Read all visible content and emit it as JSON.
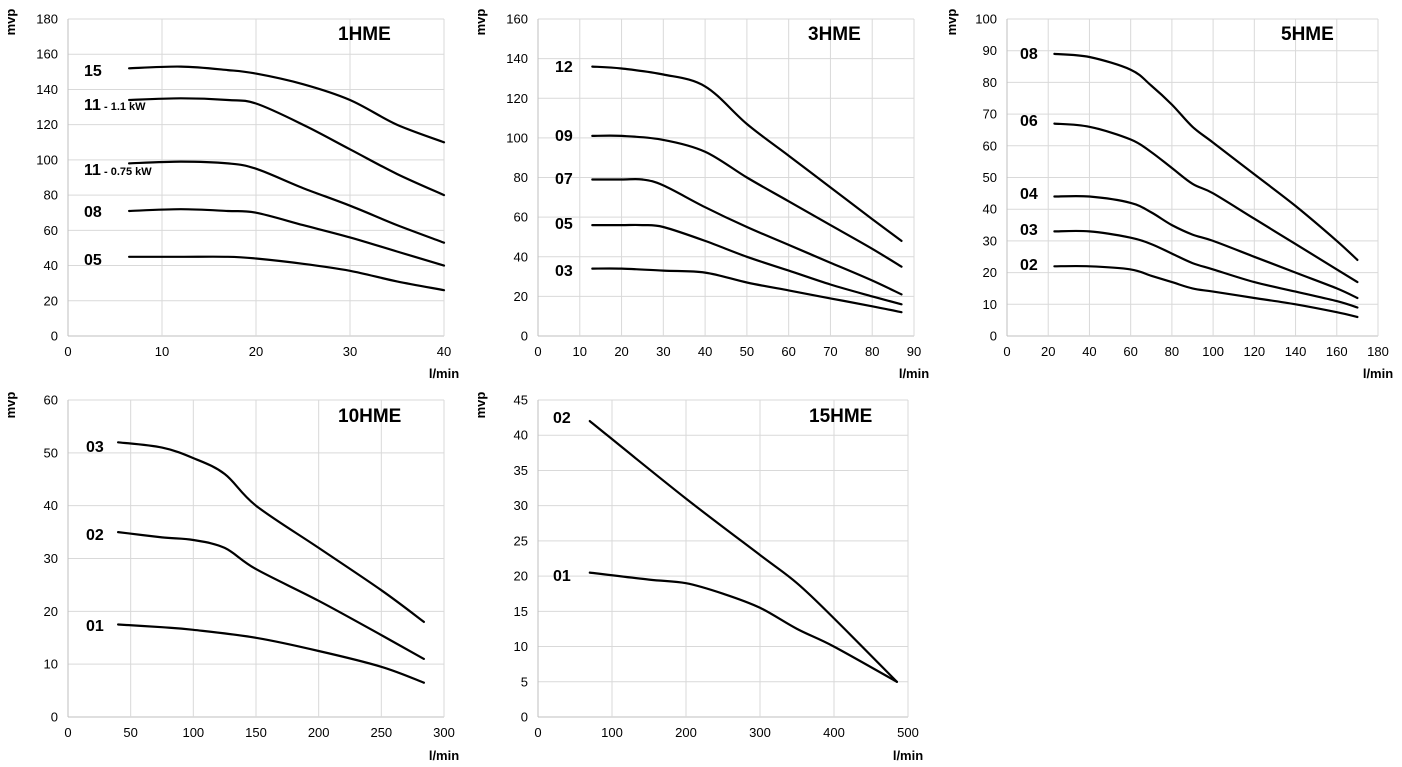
{
  "chart_data": [
    {
      "type": "line",
      "title": "1HME",
      "ylabel": "mvp",
      "xlabel": "l/min",
      "xlim": [
        0,
        40
      ],
      "ylim": [
        0,
        180
      ],
      "xticks": [
        0,
        10,
        20,
        30,
        40
      ],
      "yticks": [
        0,
        20,
        40,
        60,
        80,
        100,
        120,
        140,
        160,
        180
      ],
      "grid": true,
      "series": [
        {
          "name": "15",
          "x": [
            6.5,
            12,
            17,
            20,
            25,
            30,
            35,
            40
          ],
          "y": [
            152,
            153,
            151,
            149,
            143,
            134,
            120,
            110
          ]
        },
        {
          "name": "11",
          "suffix": " - 1.1 kW",
          "x": [
            6.5,
            12,
            17,
            20,
            25,
            30,
            35,
            40
          ],
          "y": [
            134,
            135,
            134,
            132,
            120,
            106,
            92,
            80
          ]
        },
        {
          "name": "11",
          "suffix": " - 0.75 kW",
          "x": [
            6.5,
            12,
            17,
            20,
            25,
            30,
            35,
            40
          ],
          "y": [
            98,
            99,
            98,
            95,
            84,
            74,
            63,
            53
          ]
        },
        {
          "name": "08",
          "x": [
            6.5,
            12,
            17,
            20,
            25,
            30,
            35,
            40
          ],
          "y": [
            71,
            72,
            71,
            70,
            63,
            56,
            48,
            40
          ]
        },
        {
          "name": "05",
          "x": [
            6.5,
            12,
            17,
            20,
            25,
            30,
            35,
            40
          ],
          "y": [
            45,
            45,
            45,
            44,
            41,
            37,
            31,
            26
          ]
        }
      ]
    },
    {
      "type": "line",
      "title": "3HME",
      "ylabel": "mvp",
      "xlabel": "l/min",
      "xlim": [
        0,
        90
      ],
      "ylim": [
        0,
        160
      ],
      "xticks": [
        0,
        10,
        20,
        30,
        40,
        50,
        60,
        70,
        80,
        90
      ],
      "yticks": [
        0,
        20,
        40,
        60,
        80,
        100,
        120,
        140,
        160
      ],
      "grid": true,
      "series": [
        {
          "name": "12",
          "x": [
            13,
            20,
            30,
            40,
            50,
            60,
            70,
            80,
            87
          ],
          "y": [
            136,
            135,
            132,
            126,
            107,
            91,
            75,
            59,
            48
          ]
        },
        {
          "name": "09",
          "x": [
            13,
            20,
            30,
            40,
            50,
            60,
            70,
            80,
            87
          ],
          "y": [
            101,
            101,
            99,
            93,
            80,
            68,
            56,
            44,
            35
          ]
        },
        {
          "name": "07",
          "x": [
            13,
            20,
            25,
            30,
            40,
            50,
            60,
            70,
            80,
            87
          ],
          "y": [
            79,
            79,
            79,
            76,
            65,
            55,
            46,
            37,
            28,
            21
          ]
        },
        {
          "name": "05",
          "x": [
            13,
            20,
            25,
            30,
            40,
            50,
            60,
            70,
            80,
            87
          ],
          "y": [
            56,
            56,
            56,
            55,
            48,
            40,
            33,
            26,
            20,
            16
          ]
        },
        {
          "name": "03",
          "x": [
            13,
            20,
            30,
            40,
            50,
            60,
            70,
            80,
            87
          ],
          "y": [
            34,
            34,
            33,
            32,
            27,
            23,
            19,
            15,
            12
          ]
        }
      ]
    },
    {
      "type": "line",
      "title": "5HME",
      "ylabel": "mvp",
      "xlabel": "l/min",
      "xlim": [
        0,
        180
      ],
      "ylim": [
        0,
        100
      ],
      "xticks": [
        0,
        20,
        40,
        60,
        80,
        100,
        120,
        140,
        160,
        180
      ],
      "yticks": [
        0,
        10,
        20,
        30,
        40,
        50,
        60,
        70,
        80,
        90,
        100
      ],
      "grid": true,
      "series": [
        {
          "name": "08",
          "x": [
            23,
            40,
            60,
            70,
            80,
            90,
            100,
            120,
            140,
            160,
            170
          ],
          "y": [
            89,
            88,
            84,
            79,
            73,
            66,
            61,
            51,
            41,
            30,
            24
          ]
        },
        {
          "name": "06",
          "x": [
            23,
            40,
            60,
            70,
            80,
            90,
            100,
            120,
            140,
            160,
            170
          ],
          "y": [
            67,
            66,
            62,
            58,
            53,
            48,
            45,
            37,
            29,
            21,
            17
          ]
        },
        {
          "name": "04",
          "x": [
            23,
            40,
            60,
            70,
            80,
            90,
            100,
            120,
            140,
            160,
            170
          ],
          "y": [
            44,
            44,
            42,
            39,
            35,
            32,
            30,
            25,
            20,
            15,
            12
          ]
        },
        {
          "name": "03",
          "x": [
            23,
            40,
            60,
            70,
            80,
            90,
            100,
            120,
            140,
            160,
            170
          ],
          "y": [
            33,
            33,
            31,
            29,
            26,
            23,
            21,
            17,
            14,
            11,
            9
          ]
        },
        {
          "name": "02",
          "x": [
            23,
            40,
            60,
            70,
            80,
            90,
            100,
            120,
            140,
            160,
            170
          ],
          "y": [
            22,
            22,
            21,
            19,
            17,
            15,
            14,
            12,
            10,
            7.5,
            6
          ]
        }
      ]
    },
    {
      "type": "line",
      "title": "10HME",
      "ylabel": "mvp",
      "xlabel": "l/min",
      "xlim": [
        0,
        300
      ],
      "ylim": [
        0,
        60
      ],
      "xticks": [
        0,
        50,
        100,
        150,
        200,
        250,
        300
      ],
      "yticks": [
        0,
        10,
        20,
        30,
        40,
        50,
        60
      ],
      "grid": true,
      "series": [
        {
          "name": "03",
          "x": [
            40,
            75,
            100,
            125,
            150,
            200,
            250,
            284
          ],
          "y": [
            52,
            51,
            49,
            46,
            40,
            32,
            24,
            18
          ]
        },
        {
          "name": "02",
          "x": [
            40,
            75,
            100,
            125,
            150,
            200,
            250,
            284
          ],
          "y": [
            35,
            34,
            33.5,
            32,
            28,
            22,
            15.5,
            11
          ]
        },
        {
          "name": "01",
          "x": [
            40,
            75,
            100,
            150,
            200,
            250,
            284
          ],
          "y": [
            17.5,
            17,
            16.5,
            15,
            12.5,
            9.5,
            6.5
          ]
        }
      ]
    },
    {
      "type": "line",
      "title": "15HME",
      "ylabel": "mvp",
      "xlabel": "l/min",
      "xlim": [
        0,
        500
      ],
      "ylim": [
        0,
        45
      ],
      "xticks": [
        0,
        100,
        200,
        300,
        400,
        500
      ],
      "yticks": [
        0,
        5,
        10,
        15,
        20,
        25,
        30,
        35,
        40,
        45
      ],
      "grid": true,
      "series": [
        {
          "name": "02",
          "x": [
            70,
            200,
            300,
            350,
            400,
            485
          ],
          "y": [
            42,
            31,
            23,
            19,
            14,
            5
          ]
        },
        {
          "name": "01",
          "x": [
            70,
            150,
            200,
            250,
            300,
            350,
            400,
            485
          ],
          "y": [
            20.5,
            19.5,
            19,
            17.5,
            15.5,
            12.5,
            10,
            5
          ]
        }
      ]
    }
  ]
}
